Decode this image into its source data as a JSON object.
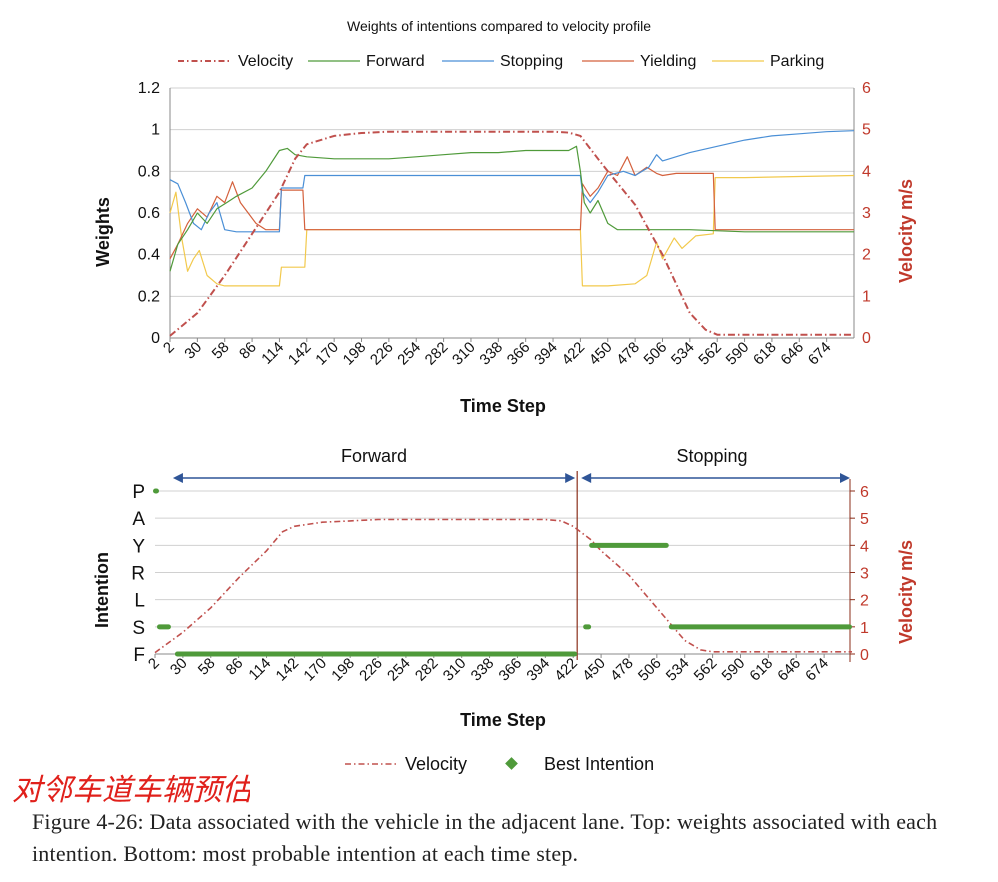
{
  "chart_data": [
    {
      "type": "line",
      "title": "Weights of intentions compared to velocity profile",
      "xlabel": "Time Step",
      "ylabel": "Weights",
      "y2label": "Velocity m/s",
      "ylim": [
        0,
        1.2
      ],
      "y2lim": [
        0,
        6
      ],
      "yticks": [
        "0",
        "0.2",
        "0.4",
        "0.6",
        "0.8",
        "1",
        "1.2"
      ],
      "y2ticks": [
        "0",
        "1",
        "2",
        "3",
        "4",
        "5",
        "6"
      ],
      "xticks": [
        "2",
        "30",
        "58",
        "86",
        "114",
        "142",
        "170",
        "198",
        "226",
        "254",
        "282",
        "310",
        "338",
        "366",
        "394",
        "422",
        "450",
        "478",
        "506",
        "534",
        "562",
        "590",
        "618",
        "646",
        "674"
      ],
      "xlim": [
        2,
        702
      ],
      "legend_position": "top",
      "colors": {
        "velocity": "#c0504d",
        "forward": "#4f9a3a",
        "stopping": "#4a8fd6",
        "yielding": "#d4603c",
        "parking": "#f2c94c"
      },
      "series": [
        {
          "name": "Velocity",
          "axis": "right",
          "style": "dash-dot",
          "points": [
            [
              2,
              0.05
            ],
            [
              30,
              0.6
            ],
            [
              58,
              1.5
            ],
            [
              86,
              2.5
            ],
            [
              114,
              3.5
            ],
            [
              130,
              4.3
            ],
            [
              142,
              4.65
            ],
            [
              170,
              4.85
            ],
            [
              198,
              4.92
            ],
            [
              226,
              4.95
            ],
            [
              254,
              4.95
            ],
            [
              282,
              4.95
            ],
            [
              310,
              4.95
            ],
            [
              338,
              4.95
            ],
            [
              366,
              4.95
            ],
            [
              394,
              4.95
            ],
            [
              410,
              4.93
            ],
            [
              422,
              4.85
            ],
            [
              440,
              4.3
            ],
            [
              450,
              4.0
            ],
            [
              478,
              3.2
            ],
            [
              506,
              2.0
            ],
            [
              534,
              0.6
            ],
            [
              550,
              0.2
            ],
            [
              562,
              0.08
            ],
            [
              590,
              0.08
            ],
            [
              646,
              0.08
            ],
            [
              674,
              0.08
            ],
            [
              702,
              0.08
            ]
          ]
        },
        {
          "name": "Forward",
          "axis": "left",
          "style": "solid",
          "points": [
            [
              2,
              0.32
            ],
            [
              10,
              0.45
            ],
            [
              20,
              0.52
            ],
            [
              30,
              0.6
            ],
            [
              40,
              0.55
            ],
            [
              50,
              0.62
            ],
            [
              60,
              0.65
            ],
            [
              70,
              0.68
            ],
            [
              86,
              0.72
            ],
            [
              100,
              0.8
            ],
            [
              114,
              0.9
            ],
            [
              122,
              0.91
            ],
            [
              130,
              0.88
            ],
            [
              142,
              0.87
            ],
            [
              170,
              0.86
            ],
            [
              198,
              0.86
            ],
            [
              226,
              0.86
            ],
            [
              254,
              0.87
            ],
            [
              282,
              0.88
            ],
            [
              310,
              0.89
            ],
            [
              338,
              0.89
            ],
            [
              366,
              0.9
            ],
            [
              394,
              0.9
            ],
            [
              410,
              0.9
            ],
            [
              418,
              0.92
            ],
            [
              422,
              0.8
            ],
            [
              426,
              0.65
            ],
            [
              432,
              0.6
            ],
            [
              440,
              0.66
            ],
            [
              450,
              0.55
            ],
            [
              460,
              0.52
            ],
            [
              478,
              0.52
            ],
            [
              506,
              0.52
            ],
            [
              534,
              0.52
            ],
            [
              590,
              0.51
            ],
            [
              646,
              0.51
            ],
            [
              702,
              0.51
            ]
          ]
        },
        {
          "name": "Stopping",
          "axis": "left",
          "style": "solid",
          "points": [
            [
              2,
              0.76
            ],
            [
              10,
              0.74
            ],
            [
              18,
              0.65
            ],
            [
              26,
              0.55
            ],
            [
              34,
              0.52
            ],
            [
              42,
              0.6
            ],
            [
              50,
              0.65
            ],
            [
              58,
              0.52
            ],
            [
              70,
              0.51
            ],
            [
              86,
              0.51
            ],
            [
              114,
              0.51
            ],
            [
              116,
              0.72
            ],
            [
              138,
              0.72
            ],
            [
              140,
              0.78
            ],
            [
              170,
              0.78
            ],
            [
              254,
              0.78
            ],
            [
              338,
              0.78
            ],
            [
              422,
              0.78
            ],
            [
              424,
              0.7
            ],
            [
              432,
              0.65
            ],
            [
              440,
              0.7
            ],
            [
              450,
              0.78
            ],
            [
              466,
              0.8
            ],
            [
              478,
              0.78
            ],
            [
              492,
              0.82
            ],
            [
              500,
              0.88
            ],
            [
              506,
              0.85
            ],
            [
              534,
              0.89
            ],
            [
              562,
              0.92
            ],
            [
              590,
              0.95
            ],
            [
              618,
              0.97
            ],
            [
              646,
              0.98
            ],
            [
              674,
              0.99
            ],
            [
              702,
              0.995
            ]
          ]
        },
        {
          "name": "Yielding",
          "axis": "left",
          "style": "solid",
          "points": [
            [
              2,
              0.38
            ],
            [
              10,
              0.45
            ],
            [
              20,
              0.55
            ],
            [
              30,
              0.62
            ],
            [
              40,
              0.58
            ],
            [
              50,
              0.68
            ],
            [
              58,
              0.65
            ],
            [
              66,
              0.75
            ],
            [
              74,
              0.65
            ],
            [
              82,
              0.6
            ],
            [
              90,
              0.55
            ],
            [
              100,
              0.52
            ],
            [
              114,
              0.52
            ],
            [
              116,
              0.71
            ],
            [
              138,
              0.71
            ],
            [
              140,
              0.52
            ],
            [
              170,
              0.52
            ],
            [
              254,
              0.52
            ],
            [
              338,
              0.52
            ],
            [
              422,
              0.52
            ],
            [
              424,
              0.74
            ],
            [
              432,
              0.68
            ],
            [
              440,
              0.72
            ],
            [
              450,
              0.8
            ],
            [
              460,
              0.78
            ],
            [
              470,
              0.87
            ],
            [
              478,
              0.78
            ],
            [
              490,
              0.82
            ],
            [
              500,
              0.79
            ],
            [
              506,
              0.78
            ],
            [
              520,
              0.79
            ],
            [
              534,
              0.79
            ],
            [
              558,
              0.79
            ],
            [
              560,
              0.52
            ],
            [
              590,
              0.52
            ],
            [
              646,
              0.52
            ],
            [
              702,
              0.52
            ]
          ]
        },
        {
          "name": "Parking",
          "axis": "left",
          "style": "solid",
          "points": [
            [
              2,
              0.6
            ],
            [
              8,
              0.7
            ],
            [
              14,
              0.48
            ],
            [
              20,
              0.32
            ],
            [
              26,
              0.38
            ],
            [
              32,
              0.42
            ],
            [
              40,
              0.3
            ],
            [
              50,
              0.26
            ],
            [
              58,
              0.25
            ],
            [
              86,
              0.25
            ],
            [
              114,
              0.25
            ],
            [
              116,
              0.34
            ],
            [
              140,
              0.34
            ],
            [
              142,
              0.52
            ],
            [
              170,
              0.52
            ],
            [
              254,
              0.52
            ],
            [
              338,
              0.52
            ],
            [
              422,
              0.52
            ],
            [
              424,
              0.25
            ],
            [
              450,
              0.25
            ],
            [
              478,
              0.26
            ],
            [
              490,
              0.3
            ],
            [
              500,
              0.46
            ],
            [
              506,
              0.38
            ],
            [
              518,
              0.48
            ],
            [
              526,
              0.43
            ],
            [
              540,
              0.49
            ],
            [
              558,
              0.5
            ],
            [
              560,
              0.77
            ],
            [
              590,
              0.77
            ],
            [
              646,
              0.775
            ],
            [
              702,
              0.78
            ]
          ]
        }
      ]
    },
    {
      "type": "scatter",
      "xlabel": "Time Step",
      "ylabel": "Intention",
      "y2label": "Velocity m/s",
      "categories_y": [
        "F",
        "S",
        "L",
        "R",
        "Y",
        "A",
        "P"
      ],
      "y2ticks": [
        "0",
        "1",
        "2",
        "3",
        "4",
        "5",
        "6"
      ],
      "y2lim": [
        0,
        6
      ],
      "xticks": [
        "2",
        "30",
        "58",
        "86",
        "114",
        "142",
        "170",
        "198",
        "226",
        "254",
        "282",
        "310",
        "338",
        "366",
        "394",
        "422",
        "450",
        "478",
        "506",
        "534",
        "562",
        "590",
        "618",
        "646",
        "674"
      ],
      "xlim": [
        2,
        702
      ],
      "phase_labels": [
        "Forward",
        "Stopping"
      ],
      "phase_ranges": [
        [
          20,
          424
        ],
        [
          430,
          700
        ]
      ],
      "phase_boundary": 426,
      "colors": {
        "velocity": "#c0504d",
        "intention": "#4f9a3a",
        "boundary": "#8b2e1a",
        "arrow": "#2f5597"
      },
      "legend": [
        "Velocity",
        "Best Intention"
      ],
      "segments": [
        {
          "intention": "P",
          "from": 2,
          "to": 4
        },
        {
          "intention": "S",
          "from": 4,
          "to": 18
        },
        {
          "intention": "F",
          "from": 22,
          "to": 426
        },
        {
          "intention": "S",
          "from": 434,
          "to": 438
        },
        {
          "intention": "Y",
          "from": 438,
          "to": 518
        },
        {
          "intention": "S",
          "from": 518,
          "to": 702
        }
      ],
      "velocity_points": [
        [
          2,
          0.05
        ],
        [
          30,
          0.8
        ],
        [
          58,
          1.7
        ],
        [
          86,
          2.8
        ],
        [
          114,
          3.8
        ],
        [
          130,
          4.5
        ],
        [
          142,
          4.7
        ],
        [
          170,
          4.85
        ],
        [
          198,
          4.9
        ],
        [
          226,
          4.95
        ],
        [
          254,
          4.95
        ],
        [
          310,
          4.95
        ],
        [
          366,
          4.95
        ],
        [
          394,
          4.95
        ],
        [
          410,
          4.9
        ],
        [
          422,
          4.7
        ],
        [
          440,
          4.2
        ],
        [
          450,
          3.8
        ],
        [
          478,
          2.9
        ],
        [
          506,
          1.7
        ],
        [
          534,
          0.5
        ],
        [
          550,
          0.15
        ],
        [
          562,
          0.08
        ],
        [
          618,
          0.08
        ],
        [
          702,
          0.08
        ]
      ]
    }
  ],
  "caption": "Figure 4-26: Data associated with the vehicle in the adjacent lane. Top: weights associated with each intention. Bottom: most probable intention at each time step.",
  "handwriting": "对邻车道车辆预估"
}
